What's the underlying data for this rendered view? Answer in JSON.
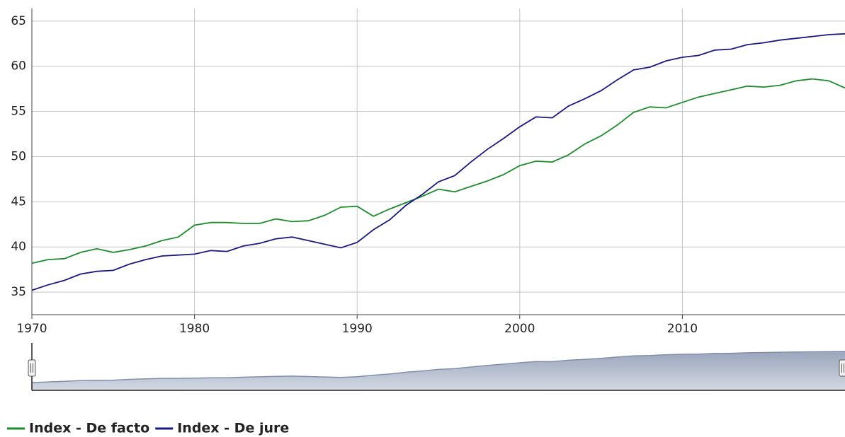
{
  "chart_data": {
    "type": "line",
    "x": [
      1970,
      1971,
      1972,
      1973,
      1974,
      1975,
      1976,
      1977,
      1978,
      1979,
      1980,
      1981,
      1982,
      1983,
      1984,
      1985,
      1986,
      1987,
      1988,
      1989,
      1990,
      1991,
      1992,
      1993,
      1994,
      1995,
      1996,
      1997,
      1998,
      1999,
      2000,
      2001,
      2002,
      2003,
      2004,
      2005,
      2006,
      2007,
      2008,
      2009,
      2010,
      2011,
      2012,
      2013,
      2014,
      2015,
      2016,
      2017,
      2018,
      2019,
      2020
    ],
    "series": [
      {
        "name": "Index - De facto",
        "color": "#1e8c2e",
        "values": [
          38.2,
          38.6,
          38.7,
          39.4,
          39.8,
          39.4,
          39.7,
          40.1,
          40.7,
          41.1,
          42.4,
          42.7,
          42.7,
          42.6,
          42.6,
          43.1,
          42.8,
          42.9,
          43.5,
          44.4,
          44.5,
          43.4,
          44.2,
          44.9,
          45.6,
          46.4,
          46.1,
          46.7,
          47.3,
          48.0,
          49.0,
          49.5,
          49.4,
          50.2,
          51.4,
          52.3,
          53.5,
          54.9,
          55.5,
          55.4,
          56.0,
          56.6,
          57.0,
          57.4,
          57.8,
          57.7,
          57.9,
          58.4,
          58.6,
          58.4,
          57.6
        ]
      },
      {
        "name": "Index - De jure",
        "color": "#1a1a80",
        "values": [
          35.2,
          35.8,
          36.3,
          37.0,
          37.3,
          37.4,
          38.1,
          38.6,
          39.0,
          39.1,
          39.2,
          39.6,
          39.5,
          40.1,
          40.4,
          40.9,
          41.1,
          40.7,
          40.3,
          39.9,
          40.5,
          41.9,
          43.0,
          44.6,
          45.8,
          47.2,
          47.9,
          49.4,
          50.8,
          52.0,
          53.3,
          54.4,
          54.3,
          55.6,
          56.4,
          57.3,
          58.5,
          59.6,
          59.9,
          60.6,
          61.0,
          61.2,
          61.8,
          61.9,
          62.4,
          62.6,
          62.9,
          63.1,
          63.3,
          63.5,
          63.6
        ]
      }
    ],
    "xlim": [
      1970,
      2020
    ],
    "xticks": [
      1970,
      1980,
      1990,
      2000,
      2010
    ],
    "ylim": [
      32.5,
      66.4
    ],
    "yticks": [
      35,
      40,
      45,
      50,
      55,
      60,
      65
    ],
    "grid": true
  }
}
